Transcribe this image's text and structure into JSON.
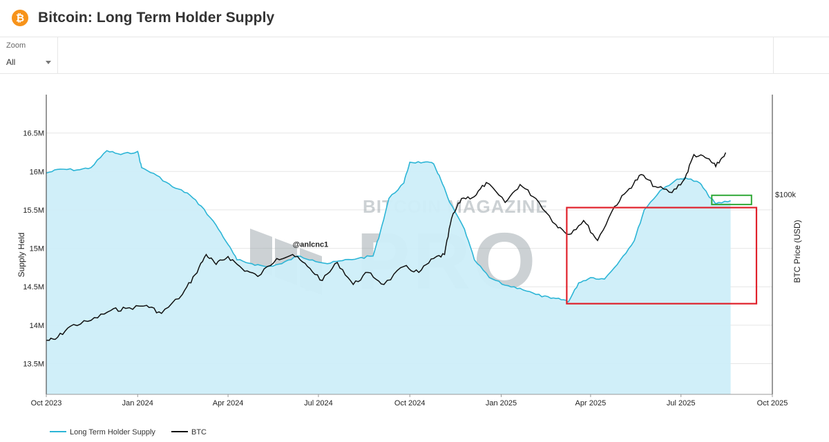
{
  "header": {
    "title": "Bitcoin: Long Term Holder Supply",
    "logo_icon": "bitcoin-logo-icon",
    "logo_glyph": "₿",
    "logo_color": "#f7931a"
  },
  "toolbar": {
    "zoom_label": "Zoom",
    "zoom_value": "All"
  },
  "watermark": {
    "top": "BITCOIN MAGAZINE",
    "big": "PRO"
  },
  "annotation_handle": "@anlcnc1",
  "colors": {
    "lth_line": "#2cb5d6",
    "lth_fill": "#cdeef9",
    "btc_line": "#111111",
    "highlight_red": "#e0212b",
    "highlight_green": "#2fa836",
    "grid": "#e6e6e6"
  },
  "chart_data": {
    "type": "area",
    "title": "Bitcoin: Long Term Holder Supply",
    "xlabel": "",
    "ylabel": "Supply Held",
    "y2label": "BTC Price (USD)",
    "grid": true,
    "legend_position": "bottom-left",
    "x_ticks": [
      "Oct 2023",
      "Jan 2024",
      "Apr 2024",
      "Jul 2024",
      "Oct 2024",
      "Jan 2025",
      "Apr 2025",
      "Jul 2025",
      "Oct 2025"
    ],
    "y_ticks": [
      "13.5M",
      "14M",
      "14.5M",
      "15M",
      "15.5M",
      "16M",
      "16.5M"
    ],
    "y_tick_values": [
      13.5,
      14.0,
      14.5,
      15.0,
      15.5,
      16.0,
      16.5
    ],
    "ylim": [
      13.1,
      17.0
    ],
    "y2_ticks": [
      "$100k"
    ],
    "y2_tick_values": [
      100000
    ],
    "y2lim": [
      0,
      150000
    ],
    "series": [
      {
        "name": "Long Term Holder Supply",
        "axis": "left",
        "points": [
          [
            "2023-10-01",
            15.98
          ],
          [
            "2023-10-15",
            16.03
          ],
          [
            "2023-11-01",
            16.02
          ],
          [
            "2023-11-15",
            16.05
          ],
          [
            "2023-12-01",
            16.27
          ],
          [
            "2023-12-15",
            16.22
          ],
          [
            "2024-01-01",
            16.26
          ],
          [
            "2024-01-05",
            16.05
          ],
          [
            "2024-01-20",
            15.95
          ],
          [
            "2024-02-05",
            15.8
          ],
          [
            "2024-02-20",
            15.72
          ],
          [
            "2024-03-05",
            15.55
          ],
          [
            "2024-03-20",
            15.3
          ],
          [
            "2024-04-01",
            15.05
          ],
          [
            "2024-04-10",
            14.85
          ],
          [
            "2024-04-25",
            14.8
          ],
          [
            "2024-05-10",
            14.76
          ],
          [
            "2024-05-25",
            14.8
          ],
          [
            "2024-06-10",
            14.9
          ],
          [
            "2024-06-25",
            14.85
          ],
          [
            "2024-07-10",
            14.8
          ],
          [
            "2024-07-25",
            14.84
          ],
          [
            "2024-08-10",
            14.87
          ],
          [
            "2024-08-25",
            14.9
          ],
          [
            "2024-09-01",
            15.2
          ],
          [
            "2024-09-10",
            15.65
          ],
          [
            "2024-09-25",
            15.85
          ],
          [
            "2024-10-01",
            16.12
          ],
          [
            "2024-10-15",
            16.12
          ],
          [
            "2024-10-25",
            16.1
          ],
          [
            "2024-11-01",
            15.9
          ],
          [
            "2024-11-10",
            15.6
          ],
          [
            "2024-11-25",
            15.25
          ],
          [
            "2024-12-05",
            14.85
          ],
          [
            "2024-12-20",
            14.62
          ],
          [
            "2025-01-05",
            14.52
          ],
          [
            "2025-01-20",
            14.48
          ],
          [
            "2025-02-05",
            14.4
          ],
          [
            "2025-02-20",
            14.35
          ],
          [
            "2025-03-05",
            14.33
          ],
          [
            "2025-03-10",
            14.31
          ],
          [
            "2025-03-20",
            14.55
          ],
          [
            "2025-04-01",
            14.62
          ],
          [
            "2025-04-15",
            14.6
          ],
          [
            "2025-05-01",
            14.85
          ],
          [
            "2025-05-15",
            15.1
          ],
          [
            "2025-05-25",
            15.5
          ],
          [
            "2025-06-10",
            15.75
          ],
          [
            "2025-06-25",
            15.88
          ],
          [
            "2025-07-05",
            15.92
          ],
          [
            "2025-07-20",
            15.85
          ],
          [
            "2025-07-28",
            15.7
          ],
          [
            "2025-08-05",
            15.58
          ],
          [
            "2025-08-20",
            15.62
          ]
        ]
      },
      {
        "name": "BTC",
        "axis": "right",
        "points": [
          [
            "2023-10-01",
            27000
          ],
          [
            "2023-10-10",
            27500
          ],
          [
            "2023-10-25",
            34000
          ],
          [
            "2023-11-15",
            37000
          ],
          [
            "2023-12-05",
            42000
          ],
          [
            "2023-12-20",
            43000
          ],
          [
            "2024-01-10",
            44500
          ],
          [
            "2024-01-25",
            40500
          ],
          [
            "2024-02-15",
            50000
          ],
          [
            "2024-02-28",
            60000
          ],
          [
            "2024-03-10",
            70000
          ],
          [
            "2024-03-20",
            65000
          ],
          [
            "2024-04-01",
            69000
          ],
          [
            "2024-04-15",
            63000
          ],
          [
            "2024-05-01",
            59000
          ],
          [
            "2024-05-20",
            68000
          ],
          [
            "2024-06-05",
            70000
          ],
          [
            "2024-06-20",
            64000
          ],
          [
            "2024-07-05",
            57000
          ],
          [
            "2024-07-20",
            66000
          ],
          [
            "2024-08-05",
            55000
          ],
          [
            "2024-08-20",
            61000
          ],
          [
            "2024-09-05",
            55000
          ],
          [
            "2024-09-25",
            64000
          ],
          [
            "2024-10-10",
            61000
          ],
          [
            "2024-10-25",
            68000
          ],
          [
            "2024-11-05",
            70000
          ],
          [
            "2024-11-12",
            88000
          ],
          [
            "2024-11-22",
            98000
          ],
          [
            "2024-12-05",
            99000
          ],
          [
            "2024-12-17",
            106000
          ],
          [
            "2025-01-05",
            96000
          ],
          [
            "2025-01-20",
            105000
          ],
          [
            "2025-02-05",
            98000
          ],
          [
            "2025-02-25",
            85000
          ],
          [
            "2025-03-10",
            80000
          ],
          [
            "2025-03-25",
            87000
          ],
          [
            "2025-04-08",
            77000
          ],
          [
            "2025-04-25",
            94000
          ],
          [
            "2025-05-10",
            103000
          ],
          [
            "2025-05-22",
            110000
          ],
          [
            "2025-06-05",
            104000
          ],
          [
            "2025-06-22",
            101000
          ],
          [
            "2025-07-05",
            108000
          ],
          [
            "2025-07-14",
            120000
          ],
          [
            "2025-07-28",
            118000
          ],
          [
            "2025-08-05",
            114000
          ],
          [
            "2025-08-15",
            121000
          ]
        ]
      }
    ],
    "annotations": [
      {
        "kind": "box",
        "color": "red",
        "x": [
          "2025-03-08",
          "2025-09-15"
        ],
        "y": [
          14.28,
          15.53
        ]
      },
      {
        "kind": "box",
        "color": "green",
        "x": [
          "2025-08-01",
          "2025-09-10"
        ],
        "y": [
          15.57,
          15.69
        ]
      },
      {
        "kind": "text",
        "text": "@anlcnc1",
        "x": "2024-06-05",
        "y": 15.02
      }
    ]
  },
  "legend": [
    {
      "name": "Long Term Holder Supply",
      "color": "#2cb5d6"
    },
    {
      "name": "BTC",
      "color": "#111111"
    }
  ]
}
